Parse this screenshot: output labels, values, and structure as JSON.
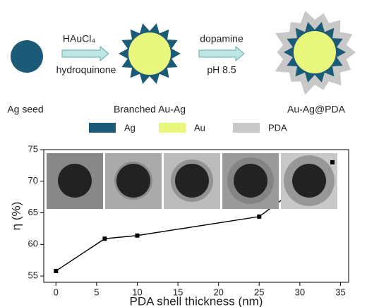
{
  "scheme": {
    "steps": [
      "Ag seed",
      "Branched Au-Ag",
      "Au-Ag@PDA"
    ],
    "arrows": [
      {
        "above": "HAuCl₄",
        "below": "hydroquinone"
      },
      {
        "above": "dopamine",
        "below": "pH 8.5"
      }
    ],
    "legend": [
      {
        "name": "Ag",
        "color": "#1b5b78"
      },
      {
        "name": "Au",
        "color": "#e8f77c"
      },
      {
        "name": "PDA",
        "color": "#c8c8c8"
      }
    ]
  },
  "chart_data": {
    "type": "line",
    "xlabel": "PDA shell thickness (nm)",
    "ylabel": "η (%)",
    "x": [
      0,
      6,
      10,
      25,
      34
    ],
    "series": [
      {
        "name": "η",
        "color": "#000000",
        "values": [
          55.8,
          60.9,
          61.4,
          64.4,
          73
        ]
      }
    ],
    "xlim": [
      -1.5,
      36
    ],
    "ylim": [
      54,
      75
    ],
    "xticks": [
      0,
      5,
      10,
      15,
      20,
      25,
      30,
      35
    ],
    "yticks": [
      55,
      60,
      65,
      70,
      75
    ]
  }
}
